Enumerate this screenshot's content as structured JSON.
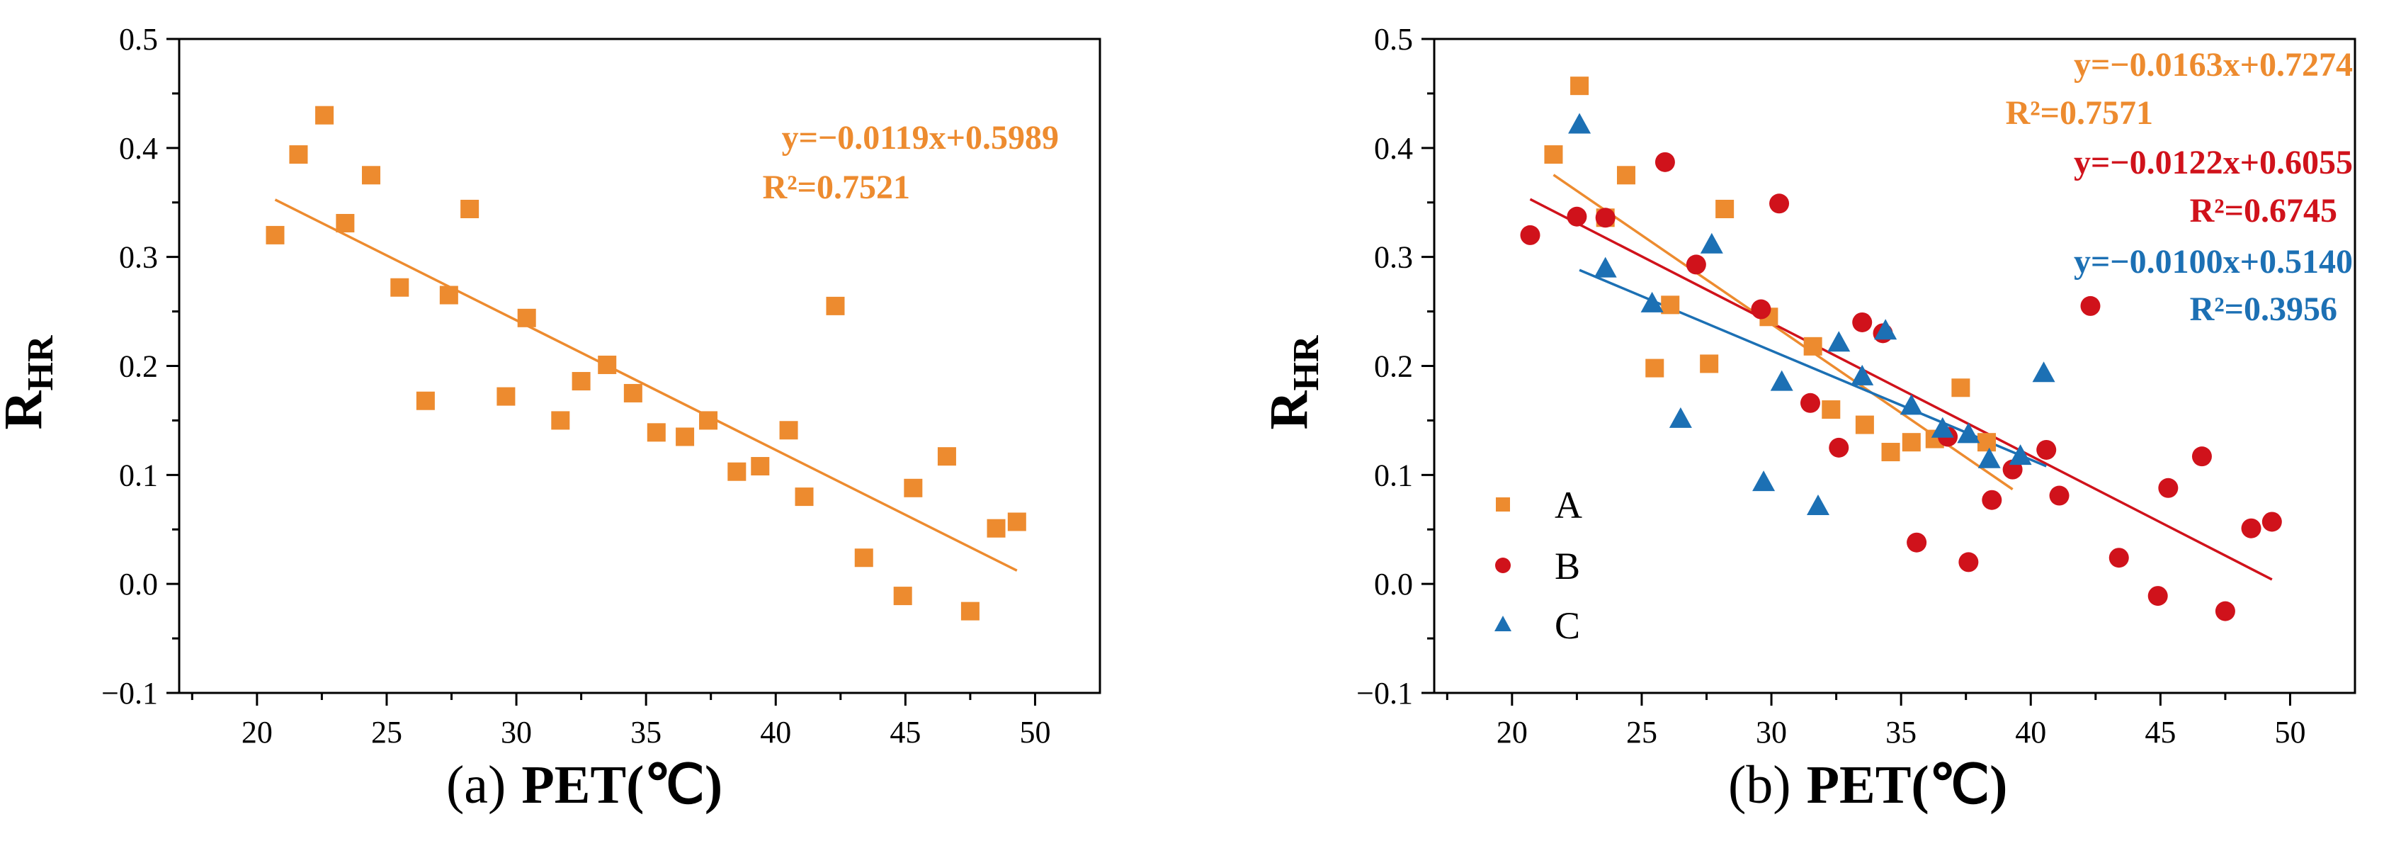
{
  "chart_data": [
    {
      "type": "scatter",
      "panel_caption": "(a)",
      "xlabel": "PET(℃)",
      "ylabel_main": "R",
      "ylabel_sub": "HR",
      "xlim": [
        17,
        52.5
      ],
      "ylim": [
        -0.1,
        0.5
      ],
      "xticks": [
        20,
        25,
        30,
        35,
        40,
        45,
        50
      ],
      "yticks": [
        -0.1,
        0.0,
        0.1,
        0.2,
        0.3,
        0.4,
        0.5
      ],
      "ytick_labels": [
        "−0.1",
        "0.0",
        "0.1",
        "0.2",
        "0.3",
        "0.4",
        "0.5"
      ],
      "series": [
        {
          "name": "",
          "color": "#ED8B2F",
          "marker": "square",
          "points": [
            [
              20.7,
              0.32
            ],
            [
              21.6,
              0.394
            ],
            [
              22.6,
              0.43
            ],
            [
              23.4,
              0.331
            ],
            [
              24.4,
              0.375
            ],
            [
              25.5,
              0.272
            ],
            [
              26.5,
              0.168
            ],
            [
              27.4,
              0.265
            ],
            [
              28.2,
              0.344
            ],
            [
              29.6,
              0.172
            ],
            [
              30.4,
              0.244
            ],
            [
              31.7,
              0.15
            ],
            [
              32.5,
              0.186
            ],
            [
              33.5,
              0.201
            ],
            [
              34.5,
              0.175
            ],
            [
              35.4,
              0.139
            ],
            [
              36.5,
              0.135
            ],
            [
              37.4,
              0.15
            ],
            [
              38.5,
              0.103
            ],
            [
              39.4,
              0.108
            ],
            [
              40.5,
              0.141
            ],
            [
              41.1,
              0.08
            ],
            [
              42.3,
              0.255
            ],
            [
              43.4,
              0.024
            ],
            [
              44.9,
              -0.011
            ],
            [
              45.3,
              0.088
            ],
            [
              46.6,
              0.117
            ],
            [
              47.5,
              -0.025
            ],
            [
              48.5,
              0.051
            ],
            [
              49.3,
              0.057
            ]
          ],
          "fit": {
            "slope": -0.0119,
            "intercept": 0.5989,
            "x_range": [
              20.7,
              49.3
            ]
          }
        }
      ],
      "annotations": [
        {
          "text": "y=−0.0119x+0.5989",
          "color": "#ED8B2F"
        },
        {
          "text": "R²=0.7521",
          "color": "#ED8B2F"
        }
      ]
    },
    {
      "type": "scatter",
      "panel_caption": "(b)",
      "xlabel": "PET(℃)",
      "ylabel_main": "R",
      "ylabel_sub": "HR",
      "xlim": [
        17,
        52.5
      ],
      "ylim": [
        -0.1,
        0.5
      ],
      "xticks": [
        20,
        25,
        30,
        35,
        40,
        45,
        50
      ],
      "yticks": [
        -0.1,
        0.0,
        0.1,
        0.2,
        0.3,
        0.4,
        0.5
      ],
      "ytick_labels": [
        "−0.1",
        "0.0",
        "0.1",
        "0.2",
        "0.3",
        "0.4",
        "0.5"
      ],
      "series": [
        {
          "name": "A",
          "color": "#ED8B2F",
          "marker": "square",
          "points": [
            [
              21.6,
              0.394
            ],
            [
              22.6,
              0.457
            ],
            [
              23.6,
              0.336
            ],
            [
              24.4,
              0.375
            ],
            [
              25.5,
              0.198
            ],
            [
              26.1,
              0.256
            ],
            [
              27.6,
              0.202
            ],
            [
              28.2,
              0.344
            ],
            [
              29.9,
              0.245
            ],
            [
              31.6,
              0.218
            ],
            [
              32.3,
              0.16
            ],
            [
              33.6,
              0.146
            ],
            [
              34.6,
              0.121
            ],
            [
              35.4,
              0.13
            ],
            [
              36.3,
              0.133
            ],
            [
              37.3,
              0.18
            ],
            [
              38.3,
              0.13
            ]
          ],
          "fit": {
            "slope": -0.0163,
            "intercept": 0.7274,
            "x_range": [
              21.6,
              39.3
            ]
          }
        },
        {
          "name": "B",
          "color": "#D0121B",
          "marker": "circle",
          "points": [
            [
              20.7,
              0.32
            ],
            [
              22.5,
              0.337
            ],
            [
              23.6,
              0.336
            ],
            [
              25.9,
              0.387
            ],
            [
              27.1,
              0.293
            ],
            [
              29.6,
              0.252
            ],
            [
              30.3,
              0.349
            ],
            [
              31.5,
              0.166
            ],
            [
              32.6,
              0.125
            ],
            [
              33.5,
              0.24
            ],
            [
              34.3,
              0.23
            ],
            [
              35.6,
              0.038
            ],
            [
              36.8,
              0.135
            ],
            [
              37.6,
              0.02
            ],
            [
              38.5,
              0.077
            ],
            [
              39.3,
              0.105
            ],
            [
              40.6,
              0.123
            ],
            [
              41.1,
              0.081
            ],
            [
              42.3,
              0.255
            ],
            [
              43.4,
              0.024
            ],
            [
              44.9,
              -0.011
            ],
            [
              45.3,
              0.088
            ],
            [
              46.6,
              0.117
            ],
            [
              47.5,
              -0.025
            ],
            [
              48.5,
              0.051
            ],
            [
              49.3,
              0.057
            ]
          ],
          "fit": {
            "slope": -0.0122,
            "intercept": 0.6055,
            "x_range": [
              20.7,
              49.3
            ]
          }
        },
        {
          "name": "C",
          "color": "#1C70B4",
          "marker": "triangle",
          "points": [
            [
              22.6,
              0.421
            ],
            [
              23.6,
              0.289
            ],
            [
              25.4,
              0.257
            ],
            [
              26.5,
              0.151
            ],
            [
              27.7,
              0.311
            ],
            [
              29.7,
              0.093
            ],
            [
              30.4,
              0.185
            ],
            [
              31.8,
              0.071
            ],
            [
              32.6,
              0.221
            ],
            [
              33.5,
              0.19
            ],
            [
              34.4,
              0.232
            ],
            [
              35.4,
              0.163
            ],
            [
              36.6,
              0.142
            ],
            [
              37.6,
              0.137
            ],
            [
              38.4,
              0.114
            ],
            [
              39.6,
              0.117
            ],
            [
              40.5,
              0.193
            ]
          ],
          "fit": {
            "slope": -0.01,
            "intercept": 0.514,
            "x_range": [
              22.6,
              40.6
            ]
          }
        }
      ],
      "annotations": [
        {
          "text": "y=−0.0163x+0.7274",
          "color": "#ED8B2F"
        },
        {
          "text": "R²=0.7571",
          "color": "#ED8B2F"
        },
        {
          "text": "y=−0.0122x+0.6055",
          "color": "#D0121B"
        },
        {
          "text": "R²=0.6745",
          "color": "#D0121B"
        },
        {
          "text": "y=−0.0100x+0.5140",
          "color": "#1C70B4"
        },
        {
          "text": "R²=0.3956",
          "color": "#1C70B4"
        }
      ]
    }
  ]
}
